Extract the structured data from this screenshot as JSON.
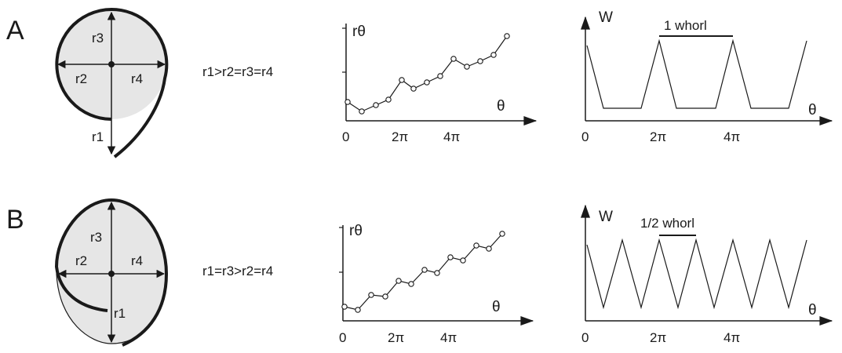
{
  "colors": {
    "ink": "#1a1a1a",
    "fill": "#e6e6e6"
  },
  "panels": [
    {
      "letter": "A",
      "radii": {
        "r1": "r1",
        "r2": "r2",
        "r3": "r3",
        "r4": "r4"
      },
      "relation": "r1>r2=r3=r4",
      "rtheta_plot": {
        "ylabel": "rθ",
        "xlabel": "θ",
        "ticks": [
          "0",
          "2π",
          "4π"
        ]
      },
      "w_plot": {
        "ylabel": "W",
        "xlabel": "θ",
        "ticks": [
          "0",
          "2π",
          "4π"
        ],
        "annotation": "1 whorl"
      }
    },
    {
      "letter": "B",
      "radii": {
        "r1": "r1",
        "r2": "r2",
        "r3": "r3",
        "r4": "r4"
      },
      "relation": "r1=r3>r2=r4",
      "rtheta_plot": {
        "ylabel": "rθ",
        "xlabel": "θ",
        "ticks": [
          "0",
          "2π",
          "4π"
        ]
      },
      "w_plot": {
        "ylabel": "W",
        "xlabel": "θ",
        "ticks": [
          "0",
          "2π",
          "4π"
        ],
        "annotation": "1/2 whorl"
      }
    }
  ]
}
